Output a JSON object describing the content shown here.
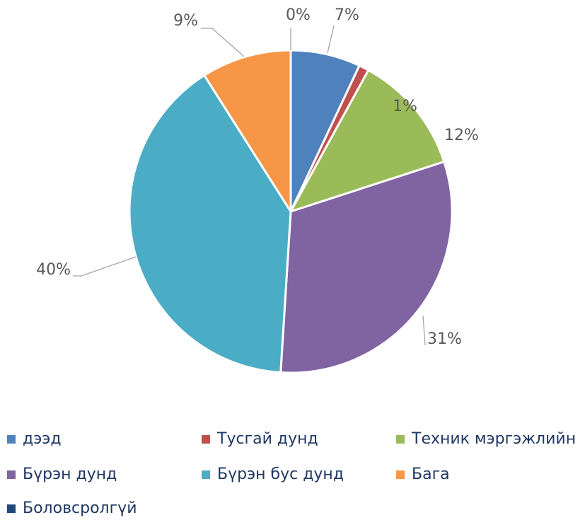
{
  "chart_data": {
    "type": "pie",
    "categories": [
      "дээд",
      "Тусгай дунд",
      "Техник мэргэжлийн",
      "Бүрэн дунд",
      "Бүрэн бус дунд",
      "Бага",
      "Боловсролгүй"
    ],
    "values": [
      7,
      1,
      12,
      31,
      40,
      9,
      0
    ],
    "value_labels": [
      "7%",
      "1%",
      "12%",
      "31%",
      "40%",
      "9%",
      "0%"
    ],
    "colors": [
      "#4f81bd",
      "#c0504d",
      "#9bbb59",
      "#8064a2",
      "#4bacc6",
      "#f79646",
      "#1f497d"
    ],
    "legend": "bottom"
  }
}
